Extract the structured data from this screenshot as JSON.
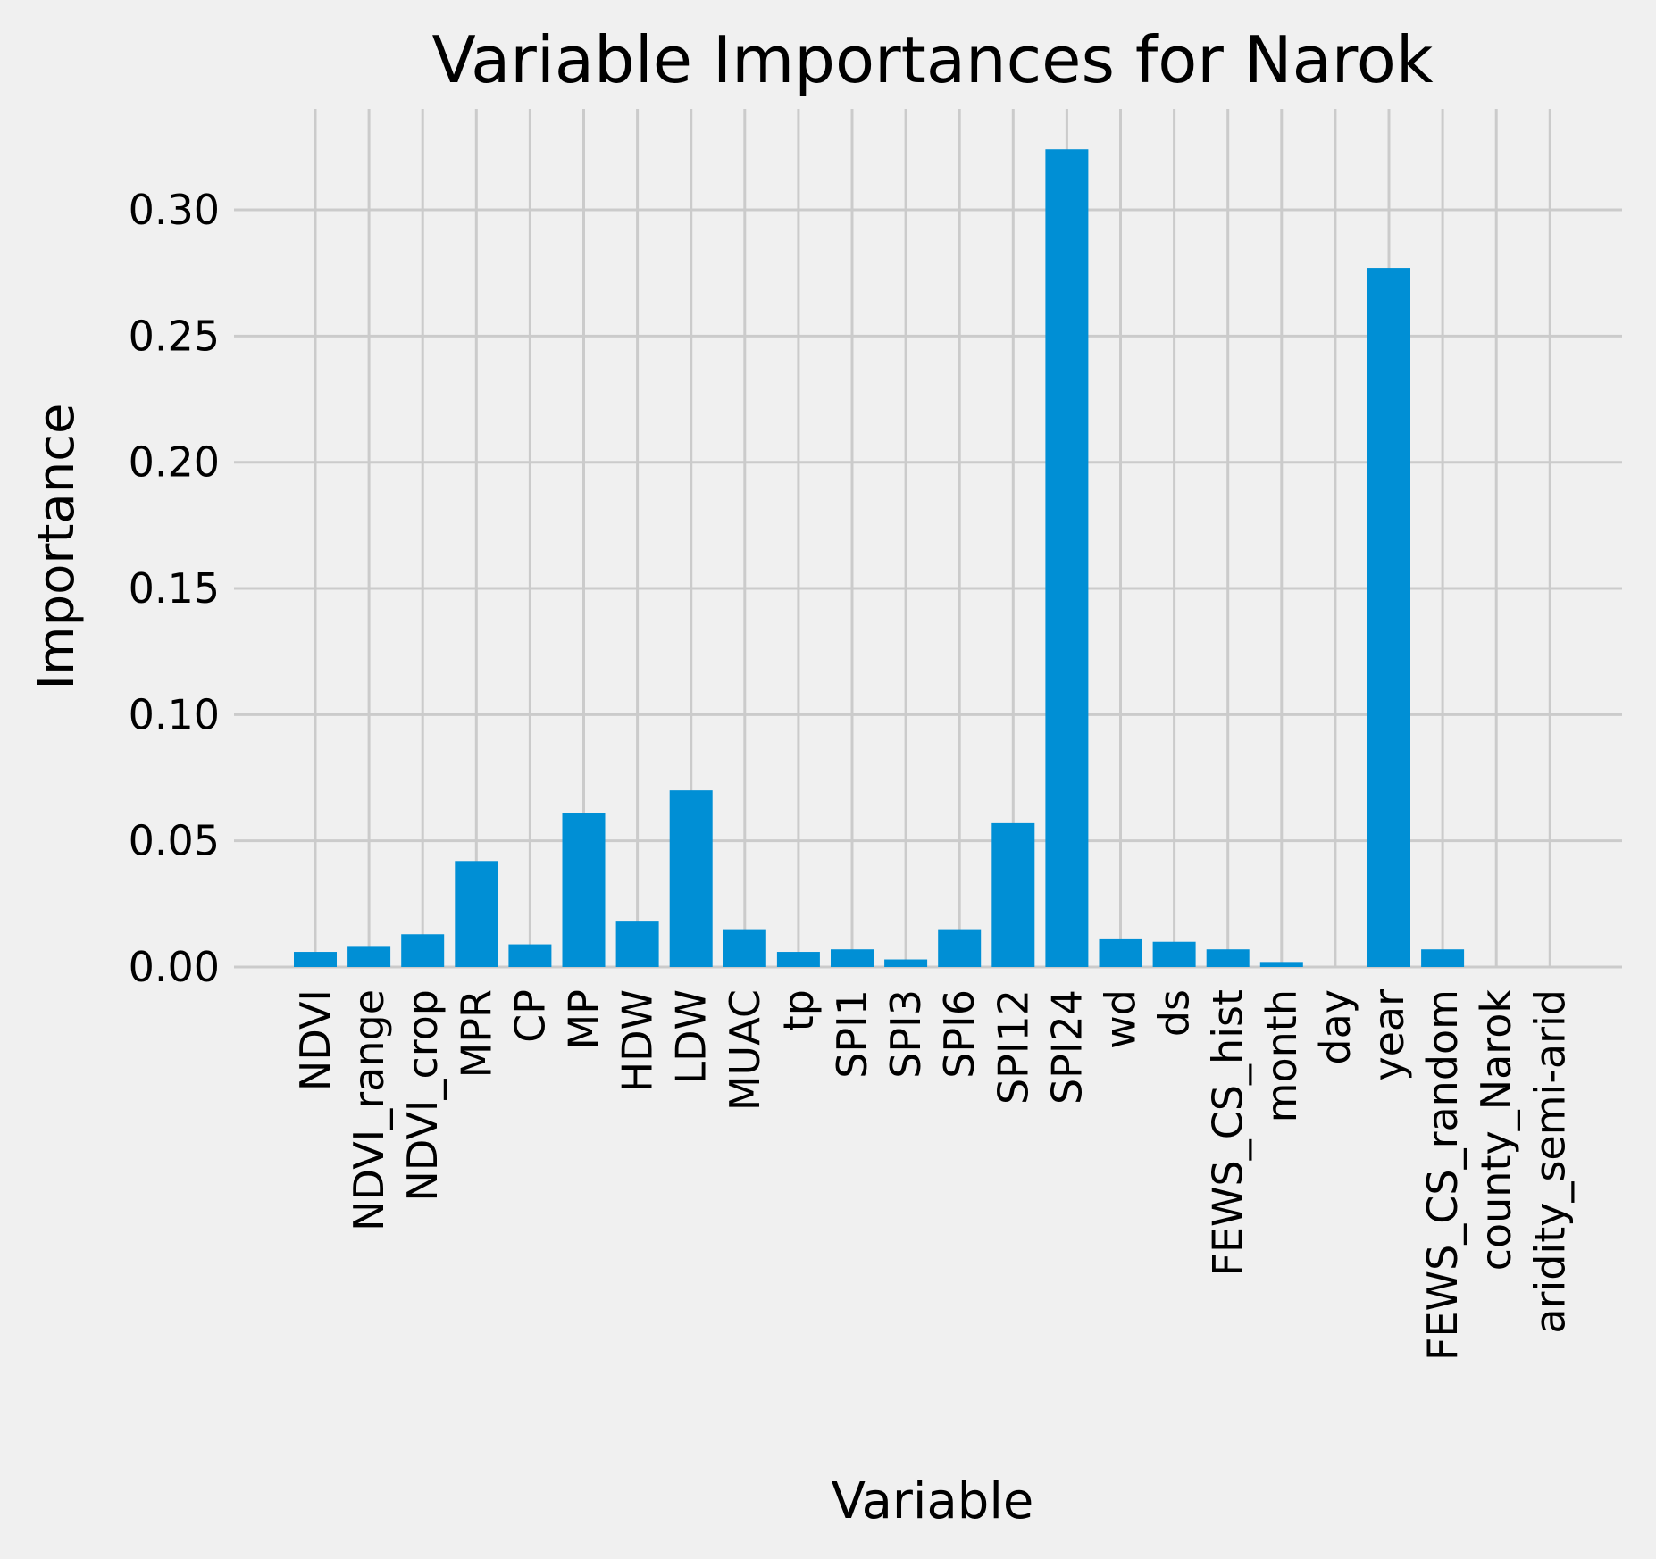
{
  "chart_data": {
    "type": "bar",
    "title": "Variable Importances for Narok",
    "xlabel": "Variable",
    "ylabel": "Importance",
    "ylim": [
      0,
      0.34
    ],
    "yticks": [
      "0.00",
      "0.05",
      "0.10",
      "0.15",
      "0.20",
      "0.25",
      "0.30"
    ],
    "grid": true,
    "bar_color": "#008fd5",
    "background_color": "#f0f0f0",
    "grid_color": "#cbcbcb",
    "categories": [
      "NDVI",
      "NDVI_range",
      "NDVI_crop",
      "MPR",
      "CP",
      "MP",
      "HDW",
      "LDW",
      "MUAC",
      "tp",
      "SPI1",
      "SPI3",
      "SPI6",
      "SPI12",
      "SPI24",
      "wd",
      "ds",
      "FEWS_CS_hist",
      "month",
      "day",
      "year",
      "FEWS_CS_random",
      "county_Narok",
      "aridity_semi-arid"
    ],
    "values": [
      0.006,
      0.008,
      0.013,
      0.042,
      0.009,
      0.061,
      0.018,
      0.07,
      0.015,
      0.006,
      0.007,
      0.003,
      0.015,
      0.057,
      0.324,
      0.011,
      0.01,
      0.007,
      0.002,
      0.0,
      0.277,
      0.007,
      0.0,
      0.0
    ]
  }
}
